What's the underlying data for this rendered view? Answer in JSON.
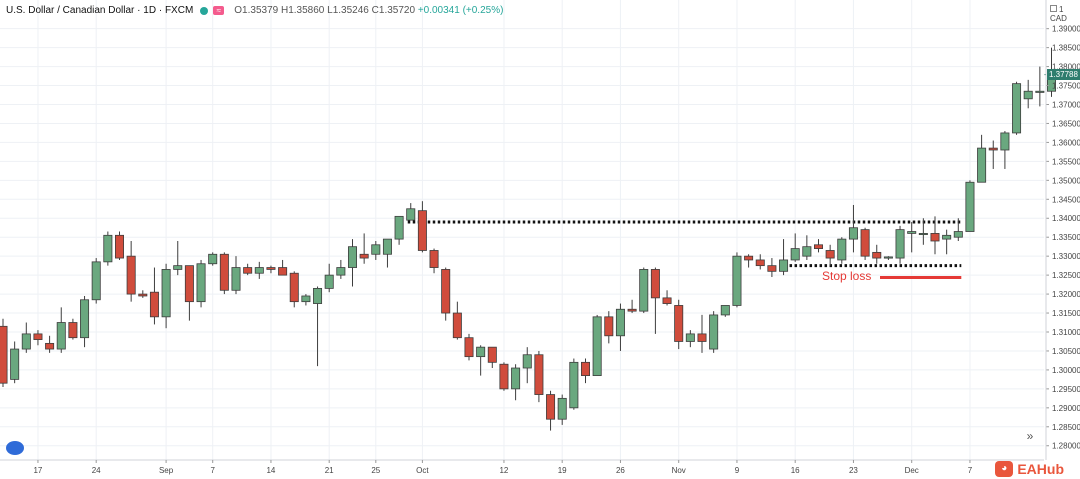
{
  "header": {
    "symbol": "U.S. Dollar / Canadian Dollar · 1D · FXCM",
    "open": "O1.35379",
    "high": "H1.35860",
    "low": "L1.35246",
    "close": "C1.35720",
    "change": "+0.00341 (+0.25%)"
  },
  "axis": {
    "currency": "1 CAD",
    "last_price_label": "1.37788"
  },
  "annotation": {
    "stop_loss_label": "Stop loss"
  },
  "watermark": "EAHub",
  "colors": {
    "up": "#6aa87f",
    "down": "#d04c3c",
    "stop_line": "#e53935",
    "price_tag": "#2e7d6e",
    "grid": "#eef1f5"
  },
  "chart_data": {
    "type": "candlestick",
    "instrument": "USDCAD",
    "timeframe": "1D",
    "ylim": [
      1.27756,
      1.39756
    ],
    "y_ticks": [
      "1.39000",
      "1.38500",
      "1.38000",
      "1.37500",
      "1.37000",
      "1.36500",
      "1.36000",
      "1.35500",
      "1.35000",
      "1.34500",
      "1.34000",
      "1.33500",
      "1.33000",
      "1.32500",
      "1.32000",
      "1.31500",
      "1.31000",
      "1.30500",
      "1.30000",
      "1.29500",
      "1.29000",
      "1.28500",
      "1.28000"
    ],
    "x_ticks": [
      "17",
      "24",
      "Sep",
      "7",
      "14",
      "21",
      "25",
      "Oct",
      "12",
      "19",
      "26",
      "Nov",
      "9",
      "16",
      "23",
      "Dec",
      "7"
    ],
    "candles": [
      {
        "o": 1.3115,
        "h": 1.3135,
        "l": 1.2955,
        "c": 1.2965
      },
      {
        "o": 1.2975,
        "h": 1.3075,
        "l": 1.2965,
        "c": 1.3055
      },
      {
        "o": 1.3055,
        "h": 1.3125,
        "l": 1.3045,
        "c": 1.3095
      },
      {
        "o": 1.3095,
        "h": 1.3105,
        "l": 1.3065,
        "c": 1.308
      },
      {
        "o": 1.307,
        "h": 1.309,
        "l": 1.3045,
        "c": 1.3055
      },
      {
        "o": 1.3055,
        "h": 1.3165,
        "l": 1.3045,
        "c": 1.3125
      },
      {
        "o": 1.3125,
        "h": 1.3135,
        "l": 1.308,
        "c": 1.3085
      },
      {
        "o": 1.3085,
        "h": 1.3195,
        "l": 1.306,
        "c": 1.3185
      },
      {
        "o": 1.3185,
        "h": 1.3295,
        "l": 1.3175,
        "c": 1.3285
      },
      {
        "o": 1.3285,
        "h": 1.3365,
        "l": 1.3275,
        "c": 1.3355
      },
      {
        "o": 1.3355,
        "h": 1.3365,
        "l": 1.329,
        "c": 1.3295
      },
      {
        "o": 1.33,
        "h": 1.334,
        "l": 1.318,
        "c": 1.32
      },
      {
        "o": 1.32,
        "h": 1.321,
        "l": 1.319,
        "c": 1.3195
      },
      {
        "o": 1.3205,
        "h": 1.327,
        "l": 1.312,
        "c": 1.314
      },
      {
        "o": 1.314,
        "h": 1.328,
        "l": 1.311,
        "c": 1.3265
      },
      {
        "o": 1.3265,
        "h": 1.334,
        "l": 1.325,
        "c": 1.3275
      },
      {
        "o": 1.3275,
        "h": 1.3275,
        "l": 1.313,
        "c": 1.318
      },
      {
        "o": 1.318,
        "h": 1.329,
        "l": 1.3165,
        "c": 1.328
      },
      {
        "o": 1.328,
        "h": 1.331,
        "l": 1.3275,
        "c": 1.3305
      },
      {
        "o": 1.3305,
        "h": 1.331,
        "l": 1.32,
        "c": 1.321
      },
      {
        "o": 1.321,
        "h": 1.33,
        "l": 1.32,
        "c": 1.327
      },
      {
        "o": 1.327,
        "h": 1.328,
        "l": 1.325,
        "c": 1.3255
      },
      {
        "o": 1.3255,
        "h": 1.3285,
        "l": 1.324,
        "c": 1.327
      },
      {
        "o": 1.327,
        "h": 1.3275,
        "l": 1.3255,
        "c": 1.3265
      },
      {
        "o": 1.327,
        "h": 1.329,
        "l": 1.325,
        "c": 1.325
      },
      {
        "o": 1.3255,
        "h": 1.326,
        "l": 1.3165,
        "c": 1.318
      },
      {
        "o": 1.318,
        "h": 1.32,
        "l": 1.317,
        "c": 1.3195
      },
      {
        "o": 1.3175,
        "h": 1.322,
        "l": 1.301,
        "c": 1.3215
      },
      {
        "o": 1.3215,
        "h": 1.328,
        "l": 1.3205,
        "c": 1.325
      },
      {
        "o": 1.325,
        "h": 1.329,
        "l": 1.324,
        "c": 1.327
      },
      {
        "o": 1.327,
        "h": 1.3345,
        "l": 1.322,
        "c": 1.3325
      },
      {
        "o": 1.3305,
        "h": 1.336,
        "l": 1.328,
        "c": 1.3295
      },
      {
        "o": 1.3305,
        "h": 1.334,
        "l": 1.329,
        "c": 1.333
      },
      {
        "o": 1.3305,
        "h": 1.3345,
        "l": 1.327,
        "c": 1.3345
      },
      {
        "o": 1.3345,
        "h": 1.34,
        "l": 1.333,
        "c": 1.3405
      },
      {
        "o": 1.3395,
        "h": 1.344,
        "l": 1.3395,
        "c": 1.3425
      },
      {
        "o": 1.342,
        "h": 1.3445,
        "l": 1.331,
        "c": 1.3315
      },
      {
        "o": 1.3315,
        "h": 1.332,
        "l": 1.3255,
        "c": 1.327
      },
      {
        "o": 1.3265,
        "h": 1.327,
        "l": 1.313,
        "c": 1.315
      },
      {
        "o": 1.315,
        "h": 1.318,
        "l": 1.308,
        "c": 1.3085
      },
      {
        "o": 1.3085,
        "h": 1.3095,
        "l": 1.3025,
        "c": 1.3035
      },
      {
        "o": 1.3035,
        "h": 1.3065,
        "l": 1.2985,
        "c": 1.306
      },
      {
        "o": 1.306,
        "h": 1.306,
        "l": 1.3005,
        "c": 1.302
      },
      {
        "o": 1.3015,
        "h": 1.302,
        "l": 1.2945,
        "c": 1.295
      },
      {
        "o": 1.295,
        "h": 1.3015,
        "l": 1.292,
        "c": 1.3005
      },
      {
        "o": 1.3005,
        "h": 1.306,
        "l": 1.2965,
        "c": 1.304
      },
      {
        "o": 1.304,
        "h": 1.305,
        "l": 1.2915,
        "c": 1.2935
      },
      {
        "o": 1.2935,
        "h": 1.2945,
        "l": 1.284,
        "c": 1.287
      },
      {
        "o": 1.287,
        "h": 1.2935,
        "l": 1.2855,
        "c": 1.2925
      },
      {
        "o": 1.29,
        "h": 1.303,
        "l": 1.2895,
        "c": 1.302
      },
      {
        "o": 1.302,
        "h": 1.303,
        "l": 1.2965,
        "c": 1.2985
      },
      {
        "o": 1.2985,
        "h": 1.3145,
        "l": 1.2985,
        "c": 1.314
      },
      {
        "o": 1.314,
        "h": 1.3155,
        "l": 1.307,
        "c": 1.309
      },
      {
        "o": 1.309,
        "h": 1.3175,
        "l": 1.305,
        "c": 1.316
      },
      {
        "o": 1.316,
        "h": 1.3185,
        "l": 1.315,
        "c": 1.3155
      },
      {
        "o": 1.3155,
        "h": 1.327,
        "l": 1.315,
        "c": 1.3265
      },
      {
        "o": 1.3265,
        "h": 1.327,
        "l": 1.3095,
        "c": 1.319
      },
      {
        "o": 1.319,
        "h": 1.321,
        "l": 1.317,
        "c": 1.3175
      },
      {
        "o": 1.317,
        "h": 1.3185,
        "l": 1.3055,
        "c": 1.3075
      },
      {
        "o": 1.3075,
        "h": 1.3105,
        "l": 1.306,
        "c": 1.3095
      },
      {
        "o": 1.3095,
        "h": 1.3145,
        "l": 1.3045,
        "c": 1.3075
      },
      {
        "o": 1.3055,
        "h": 1.3155,
        "l": 1.3045,
        "c": 1.3145
      },
      {
        "o": 1.3145,
        "h": 1.317,
        "l": 1.314,
        "c": 1.317
      },
      {
        "o": 1.317,
        "h": 1.331,
        "l": 1.3165,
        "c": 1.33
      },
      {
        "o": 1.33,
        "h": 1.3305,
        "l": 1.327,
        "c": 1.329
      },
      {
        "o": 1.329,
        "h": 1.3305,
        "l": 1.3265,
        "c": 1.3275
      },
      {
        "o": 1.3275,
        "h": 1.3295,
        "l": 1.3245,
        "c": 1.326
      },
      {
        "o": 1.326,
        "h": 1.3345,
        "l": 1.325,
        "c": 1.329
      },
      {
        "o": 1.329,
        "h": 1.336,
        "l": 1.3285,
        "c": 1.332
      },
      {
        "o": 1.33,
        "h": 1.3355,
        "l": 1.329,
        "c": 1.3325
      },
      {
        "o": 1.333,
        "h": 1.3345,
        "l": 1.331,
        "c": 1.332
      },
      {
        "o": 1.3315,
        "h": 1.333,
        "l": 1.3275,
        "c": 1.3295
      },
      {
        "o": 1.329,
        "h": 1.335,
        "l": 1.328,
        "c": 1.3345
      },
      {
        "o": 1.3345,
        "h": 1.3435,
        "l": 1.331,
        "c": 1.3375
      },
      {
        "o": 1.337,
        "h": 1.3375,
        "l": 1.329,
        "c": 1.33
      },
      {
        "o": 1.331,
        "h": 1.333,
        "l": 1.328,
        "c": 1.3295
      },
      {
        "o": 1.3295,
        "h": 1.33,
        "l": 1.329,
        "c": 1.3298
      },
      {
        "o": 1.3295,
        "h": 1.338,
        "l": 1.328,
        "c": 1.337
      },
      {
        "o": 1.336,
        "h": 1.339,
        "l": 1.331,
        "c": 1.3365
      },
      {
        "o": 1.336,
        "h": 1.34,
        "l": 1.333,
        "c": 1.336
      },
      {
        "o": 1.336,
        "h": 1.3405,
        "l": 1.3305,
        "c": 1.334
      },
      {
        "o": 1.3345,
        "h": 1.337,
        "l": 1.3305,
        "c": 1.3355
      },
      {
        "o": 1.335,
        "h": 1.34,
        "l": 1.334,
        "c": 1.3365
      },
      {
        "o": 1.3365,
        "h": 1.35,
        "l": 1.3365,
        "c": 1.3495
      },
      {
        "o": 1.3495,
        "h": 1.362,
        "l": 1.3495,
        "c": 1.3585
      },
      {
        "o": 1.3585,
        "h": 1.3605,
        "l": 1.353,
        "c": 1.358
      },
      {
        "o": 1.358,
        "h": 1.363,
        "l": 1.353,
        "c": 1.3625
      },
      {
        "o": 1.3625,
        "h": 1.376,
        "l": 1.362,
        "c": 1.3755
      },
      {
        "o": 1.3715,
        "h": 1.3765,
        "l": 1.369,
        "c": 1.3735
      },
      {
        "o": 1.3735,
        "h": 1.38,
        "l": 1.3695,
        "c": 1.3735
      },
      {
        "o": 1.3735,
        "h": 1.385,
        "l": 1.372,
        "c": 1.378
      }
    ],
    "annotations": {
      "resistance_level": 1.339,
      "stop_loss_level": 1.3275,
      "last_price": 1.37788
    }
  }
}
